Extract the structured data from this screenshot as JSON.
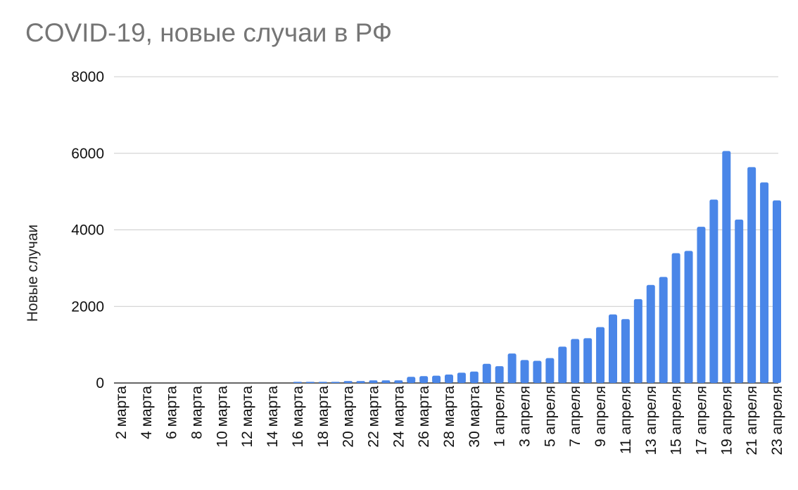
{
  "chart_data": {
    "type": "bar",
    "title": "COVID-19, новые случаи в РФ",
    "xlabel": "",
    "ylabel": "Новые случаи",
    "ylim": [
      0,
      8000
    ],
    "yticks": [
      0,
      2000,
      4000,
      6000,
      8000
    ],
    "grid": true,
    "legend": "none",
    "bar_color": "#4a86e8",
    "categories": [
      "2 марта",
      "3 марта",
      "4 марта",
      "5 марта",
      "6 марта",
      "7 марта",
      "8 марта",
      "9 марта",
      "10 марта",
      "11 марта",
      "12 марта",
      "13 марта",
      "14 марта",
      "15 марта",
      "16 марта",
      "17 марта",
      "18 марта",
      "19 марта",
      "20 марта",
      "21 марта",
      "22 марта",
      "23 марта",
      "24 марта",
      "25 марта",
      "26 марта",
      "27 марта",
      "28 марта",
      "29 марта",
      "30 марта",
      "31 марта",
      "1 апреля",
      "2 апреля",
      "3 апреля",
      "4 апреля",
      "5 апреля",
      "6 апреля",
      "7 апреля",
      "8 апреля",
      "9 апреля",
      "10 апреля",
      "11 апреля",
      "12 апреля",
      "13 апреля",
      "14 апреля",
      "15 апреля",
      "16 апреля",
      "17 апреля",
      "18 апреля",
      "19 апреля",
      "20 апреля",
      "21 апреля",
      "22 апреля",
      "23 апреля"
    ],
    "tick_labels": [
      "2 марта",
      "4 марта",
      "6 марта",
      "8 марта",
      "10 марта",
      "12 марта",
      "14 марта",
      "16 марта",
      "18 марта",
      "20 марта",
      "22 марта",
      "24 марта",
      "26 марта",
      "28 марта",
      "30 марта",
      "1 апреля",
      "3 апреля",
      "5 апреля",
      "7 апреля",
      "9 апреля",
      "11 апреля",
      "13 апреля",
      "15 апреля",
      "17 апреля",
      "19 апреля",
      "21 апреля",
      "23 апреля"
    ],
    "values": [
      0,
      0,
      0,
      0,
      0,
      0,
      0,
      0,
      0,
      0,
      0,
      0,
      0,
      0,
      30,
      30,
      30,
      30,
      50,
      50,
      70,
      70,
      70,
      160,
      180,
      190,
      220,
      270,
      300,
      500,
      440,
      770,
      600,
      580,
      650,
      950,
      1150,
      1170,
      1460,
      1790,
      1670,
      2190,
      2560,
      2770,
      3390,
      3450,
      4080,
      4790,
      6060,
      4270,
      5640,
      5240,
      4770
    ]
  }
}
